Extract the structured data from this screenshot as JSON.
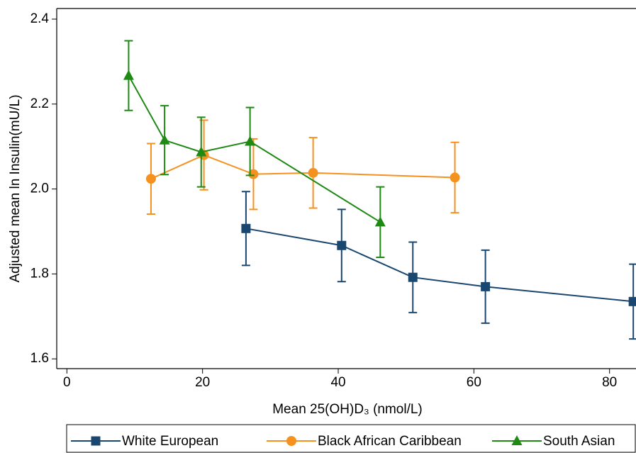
{
  "chart_data": {
    "type": "line",
    "x_label": "Mean 25(OH)D₃ (nmol/L)",
    "y_label": "Adjusted mean ln Insulin(mU/L)",
    "xlim": [
      -1.5,
      83.9
    ],
    "ylim": [
      1.577,
      2.425
    ],
    "xticks": [
      0,
      20,
      40,
      60,
      80
    ],
    "yticks": [
      1.6,
      1.8,
      {
        "value": 2,
        "label": "2.0"
      },
      2.2,
      2.4
    ],
    "grid": false,
    "legend": "bottom",
    "series": [
      {
        "name": "White European",
        "color": "#1a476f",
        "marker": "square",
        "x": [
          26.4,
          40.5,
          51.0,
          61.7,
          83.5
        ],
        "values": [
          1.907,
          1.867,
          1.792,
          1.77,
          1.735
        ],
        "errors": [
          0.087,
          0.085,
          0.083,
          0.086,
          0.088
        ]
      },
      {
        "name": "Black African Caribbean",
        "color": "#f5911e",
        "marker": "circle",
        "x": [
          12.4,
          20.2,
          27.5,
          36.3,
          57.2
        ],
        "values": [
          2.024,
          2.08,
          2.035,
          2.038,
          2.027
        ],
        "errors": [
          0.083,
          0.082,
          0.083,
          0.083,
          0.083
        ]
      },
      {
        "name": "South Asian",
        "color": "#1e8a14",
        "marker": "triangle",
        "x": [
          9.1,
          14.4,
          19.8,
          27.0,
          46.2
        ],
        "values": [
          2.267,
          2.115,
          2.087,
          2.112,
          1.922
        ],
        "errors": [
          0.082,
          0.081,
          0.082,
          0.08,
          0.083
        ]
      }
    ]
  }
}
